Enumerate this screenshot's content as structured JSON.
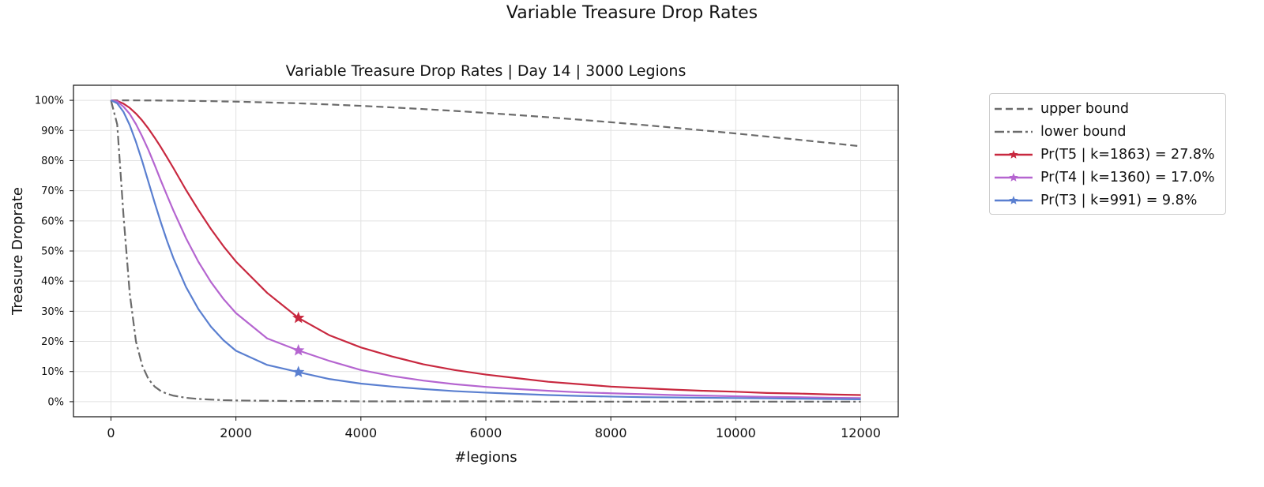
{
  "figure": {
    "suptitle": "Variable Treasure Drop Rates"
  },
  "chart_data": {
    "type": "line",
    "title": "Variable Treasure Drop Rates | Day 14 | 3000 Legions",
    "xlabel": "#legions",
    "ylabel": "Treasure Droprate",
    "xlim": [
      -600,
      12600
    ],
    "ylim": [
      -0.05,
      1.05
    ],
    "xticks": [
      0,
      2000,
      4000,
      6000,
      8000,
      10000,
      12000
    ],
    "xtick_labels": [
      "0",
      "2000",
      "4000",
      "6000",
      "8000",
      "10000",
      "12000"
    ],
    "yticks": [
      0,
      0.1,
      0.2,
      0.3,
      0.4,
      0.5,
      0.6,
      0.7,
      0.8,
      0.9,
      1.0
    ],
    "ytick_labels": [
      "0%",
      "10%",
      "20%",
      "30%",
      "40%",
      "50%",
      "60%",
      "70%",
      "80%",
      "90%",
      "100%"
    ],
    "grid": true,
    "legend_position": "outside-right",
    "x": [
      0,
      100,
      200,
      300,
      400,
      500,
      600,
      700,
      800,
      900,
      1000,
      1200,
      1400,
      1600,
      1800,
      2000,
      2500,
      3000,
      3500,
      4000,
      4500,
      5000,
      5500,
      6000,
      6500,
      7000,
      7500,
      8000,
      8500,
      9000,
      9500,
      10000,
      10500,
      11000,
      11500,
      12000
    ],
    "series": [
      {
        "name": "upper bound",
        "style": "dashed",
        "color": "#6b6b6b",
        "values": [
          1.0,
          1.0,
          1.0,
          0.9999,
          0.9998,
          0.9997,
          0.9996,
          0.9995,
          0.9993,
          0.9991,
          0.9989,
          0.9984,
          0.9978,
          0.9972,
          0.9964,
          0.9956,
          0.993,
          0.99,
          0.9861,
          0.9817,
          0.9765,
          0.9709,
          0.9649,
          0.9582,
          0.9512,
          0.9437,
          0.9357,
          0.9273,
          0.9185,
          0.9093,
          0.8998,
          0.8899,
          0.8797,
          0.8692,
          0.8585,
          0.8475
        ]
      },
      {
        "name": "lower bound",
        "style": "dashdot",
        "color": "#6b6b6b",
        "values": [
          1.0,
          0.92,
          0.62,
          0.36,
          0.2,
          0.12,
          0.075,
          0.05,
          0.035,
          0.026,
          0.02,
          0.013,
          0.009,
          0.007,
          0.005,
          0.004,
          0.003,
          0.002,
          0.002,
          0.001,
          0.001,
          0.001,
          0.001,
          0.001,
          0.001,
          0.0,
          0.0,
          0.0,
          0.0,
          0.0,
          0.0,
          0.0,
          0.0,
          0.0,
          0.0,
          0.0
        ]
      },
      {
        "name": "Pr(T5 | k=1863) = 27.8%",
        "style": "solid",
        "color": "#c8283f",
        "marker": {
          "x": 3000,
          "y": 0.278
        },
        "values": [
          1.0,
          0.998,
          0.989,
          0.975,
          0.956,
          0.933,
          0.906,
          0.876,
          0.844,
          0.81,
          0.775,
          0.703,
          0.636,
          0.573,
          0.516,
          0.465,
          0.361,
          0.278,
          0.22,
          0.18,
          0.15,
          0.124,
          0.105,
          0.09,
          0.078,
          0.066,
          0.058,
          0.05,
          0.045,
          0.04,
          0.036,
          0.033,
          0.029,
          0.027,
          0.024,
          0.022
        ]
      },
      {
        "name": "Pr(T4 | k=1360) = 17.0%",
        "style": "solid",
        "color": "#b565d0",
        "marker": {
          "x": 3000,
          "y": 0.17
        },
        "values": [
          1.0,
          0.996,
          0.979,
          0.955,
          0.921,
          0.88,
          0.835,
          0.785,
          0.733,
          0.683,
          0.634,
          0.543,
          0.464,
          0.397,
          0.341,
          0.294,
          0.21,
          0.17,
          0.135,
          0.105,
          0.085,
          0.07,
          0.058,
          0.049,
          0.042,
          0.036,
          0.031,
          0.028,
          0.025,
          0.022,
          0.02,
          0.018,
          0.016,
          0.015,
          0.013,
          0.012
        ]
      },
      {
        "name": "Pr(T3 | k=991) = 9.8%",
        "style": "solid",
        "color": "#5a7fd0",
        "marker": {
          "x": 3000,
          "y": 0.098
        },
        "values": [
          1.0,
          0.99,
          0.962,
          0.918,
          0.862,
          0.798,
          0.729,
          0.66,
          0.594,
          0.532,
          0.476,
          0.381,
          0.307,
          0.249,
          0.204,
          0.169,
          0.122,
          0.098,
          0.075,
          0.06,
          0.05,
          0.042,
          0.035,
          0.03,
          0.026,
          0.022,
          0.019,
          0.017,
          0.015,
          0.014,
          0.013,
          0.012,
          0.011,
          0.01,
          0.009,
          0.008
        ]
      }
    ]
  }
}
